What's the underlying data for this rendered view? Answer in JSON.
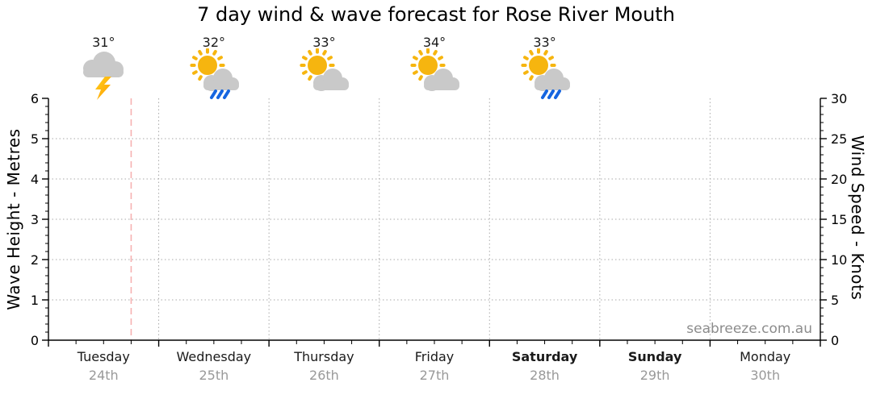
{
  "title": "7 day wind & wave forecast for Rose River Mouth",
  "watermark": "seabreeze.com.au",
  "colors": {
    "axis": "#000000",
    "grid": "#a9a9a9",
    "now_line": "#f6b1b1",
    "day_name": "#1a1a1a",
    "day_date": "#999999",
    "temp_text": "#1a1a1a",
    "watermark": "#8c8c8c",
    "sun": "#f6b50f",
    "cloud": "#c9c9c9",
    "rain": "#1565e0",
    "bolt_top": "#ffd21e",
    "bolt_bottom": "#ff9900"
  },
  "chart_data": {
    "type": "line",
    "title": "7 day wind & wave forecast for Rose River Mouth",
    "series": [],
    "left_axis": {
      "label": "Wave Height - Metres",
      "min": 0,
      "max": 6,
      "major_step": 1,
      "minor_step": 0.2,
      "major_ticks": [
        0,
        1,
        2,
        3,
        4,
        5,
        6
      ]
    },
    "right_axis": {
      "label": "Wind Speed - Knots",
      "min": 0,
      "max": 30,
      "major_step": 5,
      "minor_step": 1,
      "major_ticks": [
        0,
        5,
        10,
        15,
        20,
        25,
        30
      ]
    },
    "x_axis": {
      "minor_divisions_per_day": 4,
      "days": [
        {
          "name": "Tuesday",
          "date": "24th",
          "bold": false
        },
        {
          "name": "Wednesday",
          "date": "25th",
          "bold": false
        },
        {
          "name": "Thursday",
          "date": "26th",
          "bold": false
        },
        {
          "name": "Friday",
          "date": "27th",
          "bold": false
        },
        {
          "name": "Saturday",
          "date": "28th",
          "bold": true
        },
        {
          "name": "Sunday",
          "date": "29th",
          "bold": true
        },
        {
          "name": "Monday",
          "date": "30th",
          "bold": false
        }
      ]
    },
    "gridlines": {
      "horizontal_at_metres": [
        1,
        2,
        3,
        4,
        5
      ],
      "vertical_at_day_boundaries": true,
      "style": "dotted"
    },
    "now_marker": {
      "day_index": 0,
      "day_fraction": 0.75,
      "style": "dashed"
    },
    "forecast_icons": [
      {
        "day": "Tuesday",
        "temperature": "31°",
        "icon": "thunderstorm"
      },
      {
        "day": "Wednesday",
        "temperature": "32°",
        "icon": "sun-cloud-rain"
      },
      {
        "day": "Thursday",
        "temperature": "33°",
        "icon": "sun-cloud"
      },
      {
        "day": "Friday",
        "temperature": "34°",
        "icon": "sun-cloud"
      },
      {
        "day": "Saturday",
        "temperature": "33°",
        "icon": "sun-cloud-rain"
      }
    ]
  }
}
